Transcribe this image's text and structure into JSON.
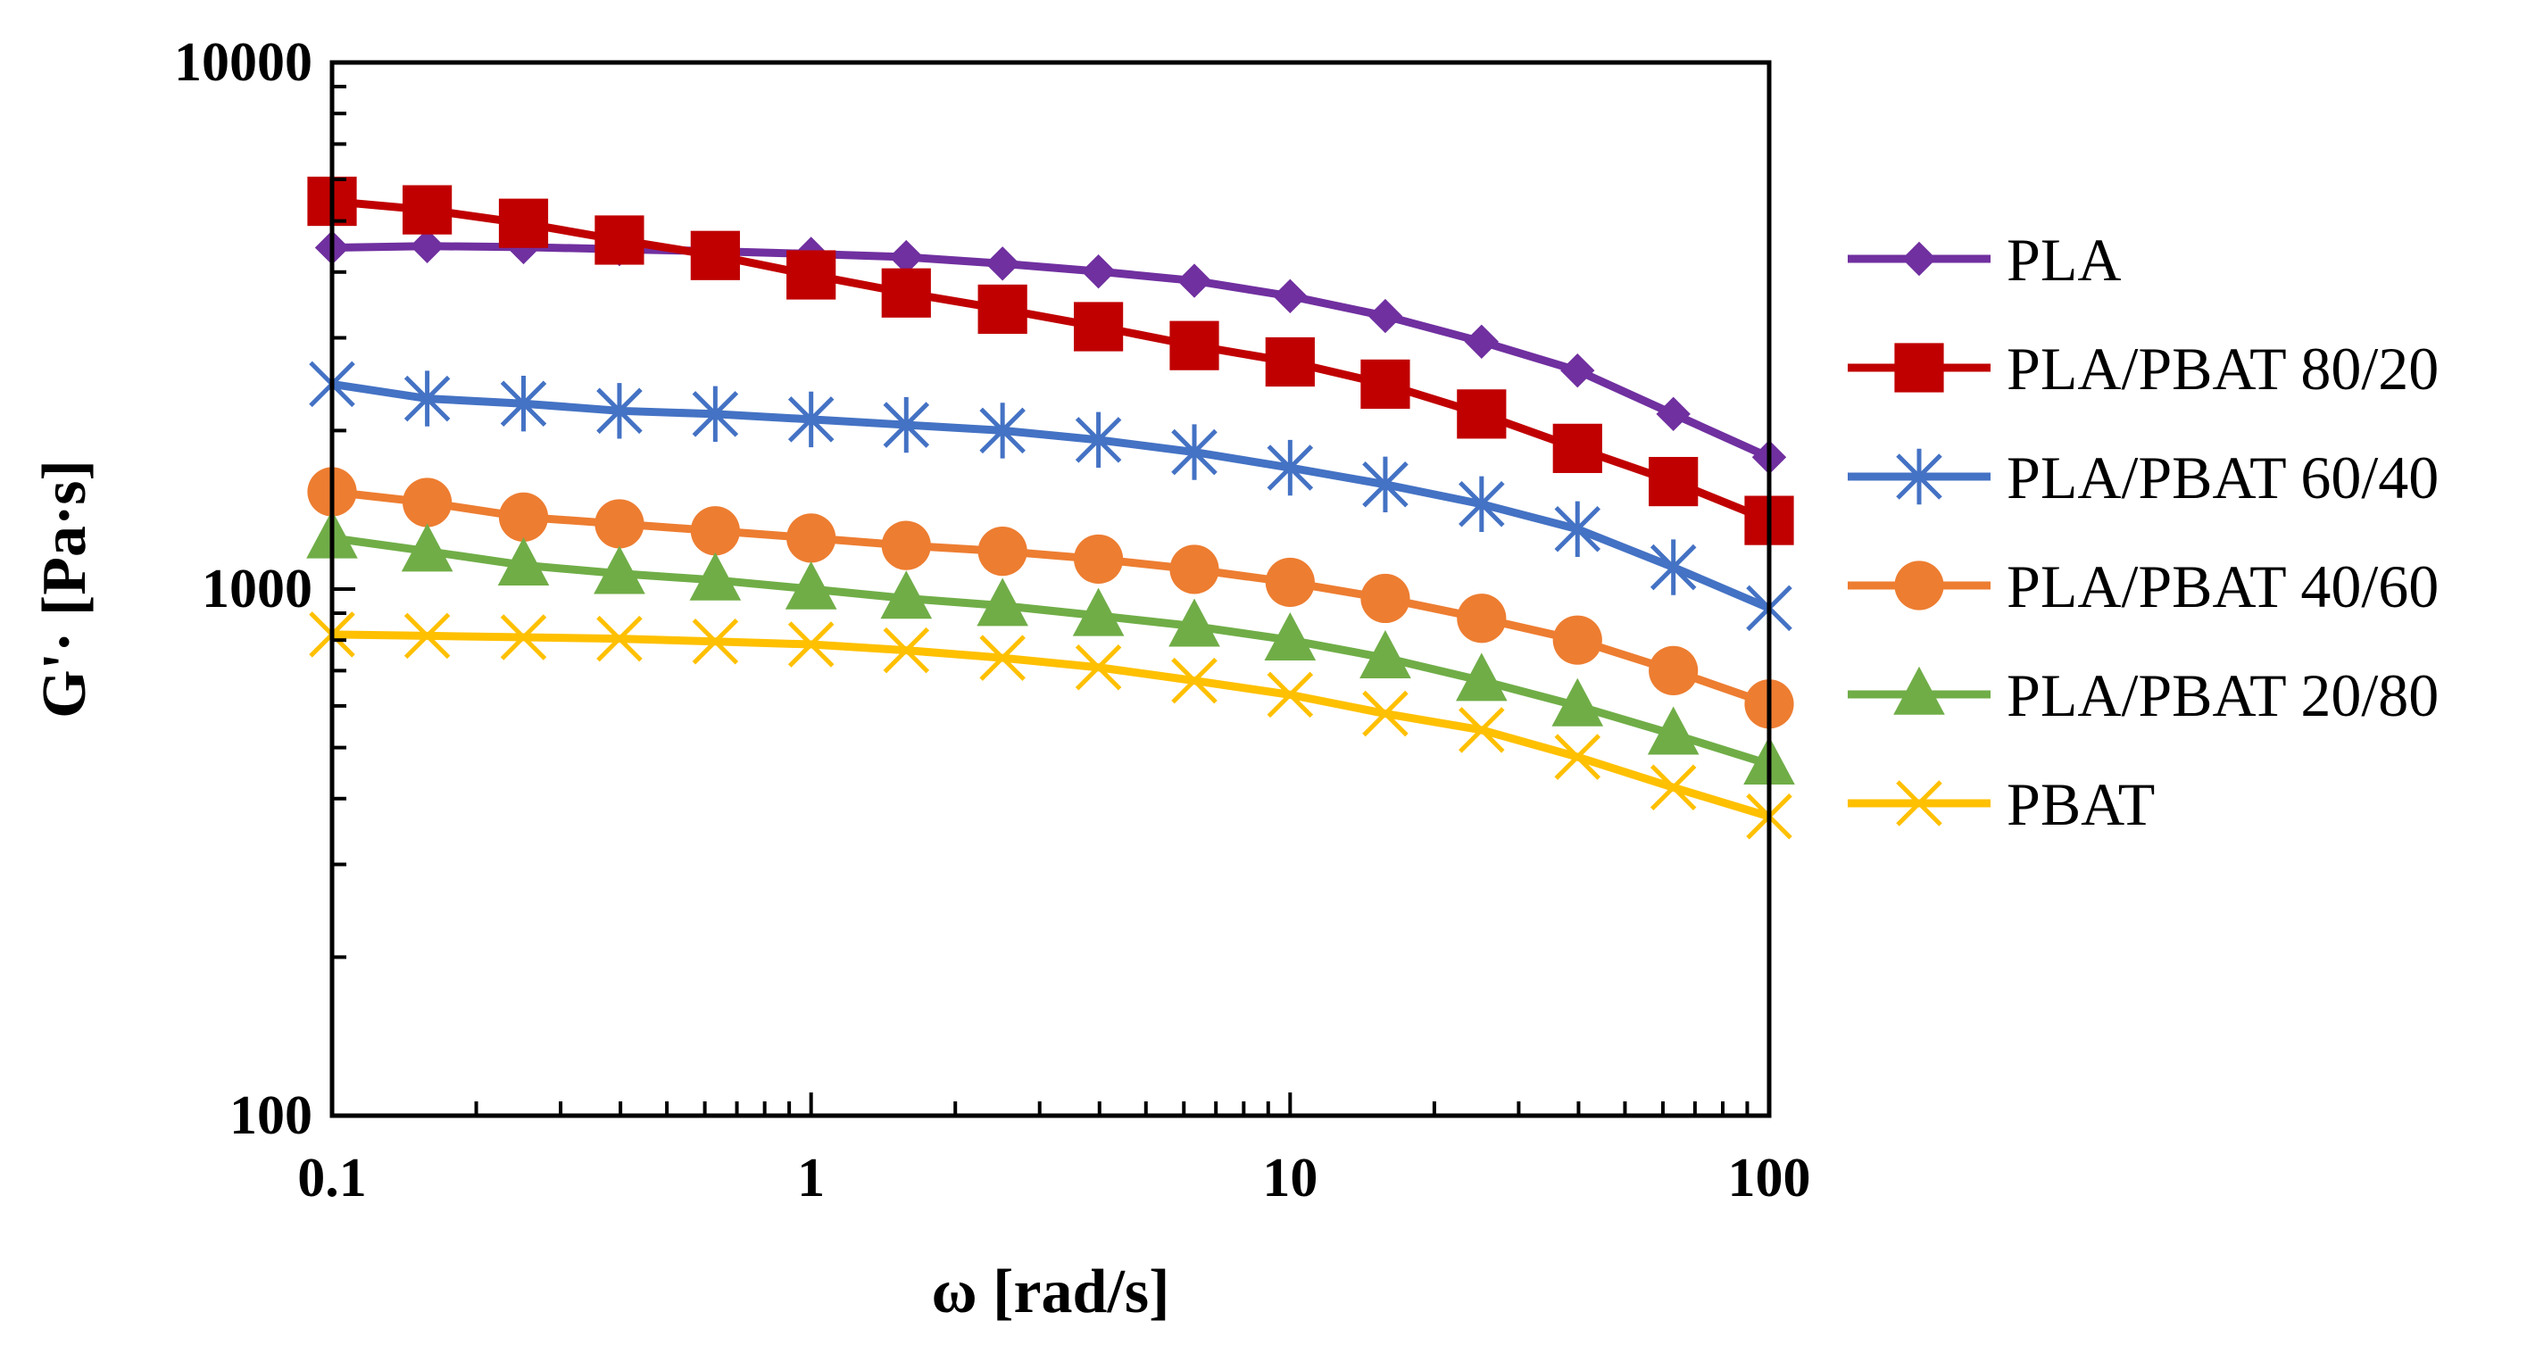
{
  "chart_data": {
    "type": "line",
    "title": "",
    "xlabel": "ω [rad/s]",
    "ylabel": "G'· [Pa·s]",
    "xscale": "log",
    "yscale": "log",
    "xlim": [
      0.1,
      100
    ],
    "ylim": [
      100,
      10000
    ],
    "x_tick_labels": [
      "0.1",
      "1",
      "10",
      "100"
    ],
    "y_tick_labels": [
      "100",
      "1000",
      "10000"
    ],
    "grid": false,
    "legend_position": "right",
    "x": [
      0.1,
      0.158,
      0.251,
      0.398,
      0.631,
      1,
      1.58,
      2.51,
      3.98,
      6.31,
      10,
      15.8,
      25.1,
      39.8,
      63.1,
      100
    ],
    "series": [
      {
        "name": "PLA",
        "color": "#7030A0",
        "marker": "diamond",
        "values": [
          4450,
          4480,
          4460,
          4420,
          4380,
          4330,
          4270,
          4150,
          4010,
          3850,
          3600,
          3300,
          2950,
          2600,
          2150,
          1780
        ]
      },
      {
        "name": "PLA/PBAT 80/20",
        "color": "#C00000",
        "marker": "square",
        "values": [
          5450,
          5250,
          4950,
          4600,
          4300,
          3950,
          3650,
          3400,
          3150,
          2900,
          2700,
          2450,
          2150,
          1850,
          1600,
          1350
        ]
      },
      {
        "name": "PLA/PBAT 60/40",
        "color": "#4472C4",
        "marker": "asterisk",
        "values": [
          2450,
          2300,
          2250,
          2180,
          2150,
          2100,
          2050,
          2000,
          1920,
          1820,
          1700,
          1580,
          1450,
          1300,
          1100,
          920
        ]
      },
      {
        "name": "PLA/PBAT 40/60",
        "color": "#ED7D31",
        "marker": "circle",
        "values": [
          1530,
          1460,
          1370,
          1330,
          1290,
          1250,
          1210,
          1180,
          1140,
          1090,
          1030,
          960,
          880,
          800,
          700,
          605
        ]
      },
      {
        "name": "PLA/PBAT 20/80",
        "color": "#70AD47",
        "marker": "triangle",
        "values": [
          1250,
          1180,
          1110,
          1070,
          1040,
          1000,
          960,
          930,
          890,
          850,
          800,
          740,
          670,
          600,
          530,
          465
        ]
      },
      {
        "name": "PBAT",
        "color": "#FFC000",
        "marker": "x",
        "values": [
          820,
          815,
          810,
          805,
          795,
          785,
          765,
          740,
          710,
          670,
          630,
          580,
          540,
          480,
          420,
          370
        ]
      }
    ]
  }
}
